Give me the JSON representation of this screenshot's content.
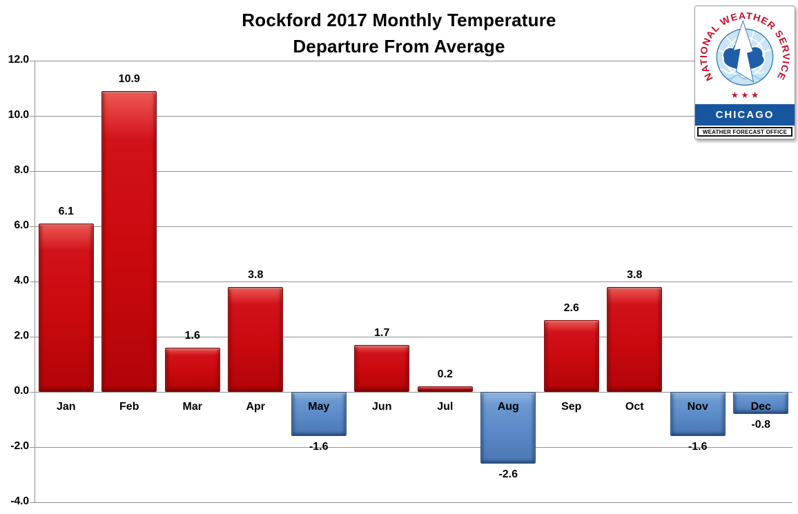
{
  "title": {
    "line1": "Rockford 2017 Monthly Temperature",
    "line2": "Departure From Average"
  },
  "chart_data": {
    "type": "bar",
    "title": "Rockford 2017 Monthly Temperature Departure From Average",
    "xlabel": "",
    "ylabel": "",
    "categories": [
      "Jan",
      "Feb",
      "Mar",
      "Apr",
      "May",
      "Jun",
      "Jul",
      "Aug",
      "Sep",
      "Oct",
      "Nov",
      "Dec"
    ],
    "values": [
      6.1,
      10.9,
      1.6,
      3.8,
      -1.6,
      1.7,
      0.2,
      -2.6,
      2.6,
      3.8,
      -1.6,
      -0.8
    ],
    "value_labels": [
      "6.1",
      "10.9",
      "1.6",
      "3.8",
      "-1.6",
      "1.7",
      "0.2",
      "-2.6",
      "2.6",
      "3.8",
      "-1.6",
      "-0.8"
    ],
    "ylim": [
      -4.0,
      12.0
    ],
    "ytick_step": 2.0,
    "ytick_labels": [
      "12.0",
      "10.0",
      "8.0",
      "6.0",
      "4.0",
      "2.0",
      "0.0",
      "-2.0",
      "-4.0"
    ],
    "grid": true,
    "legend": false,
    "positive_color": "#C9090D",
    "negative_color": "#5B8AC9",
    "gridline_color": "#909090"
  },
  "logo": {
    "arc_text": "NATIONAL WEATHER SERVICE",
    "stars": "★ ★ ★",
    "small_star": "★",
    "city": "CHICAGO",
    "office_label": "WEATHER FORECAST OFFICE",
    "colors": {
      "banner_blue": "#17559F",
      "arc_red": "#C8102E",
      "cloud_blue": "#1F5FA8",
      "sky_blue": "#C9E5F5"
    }
  }
}
